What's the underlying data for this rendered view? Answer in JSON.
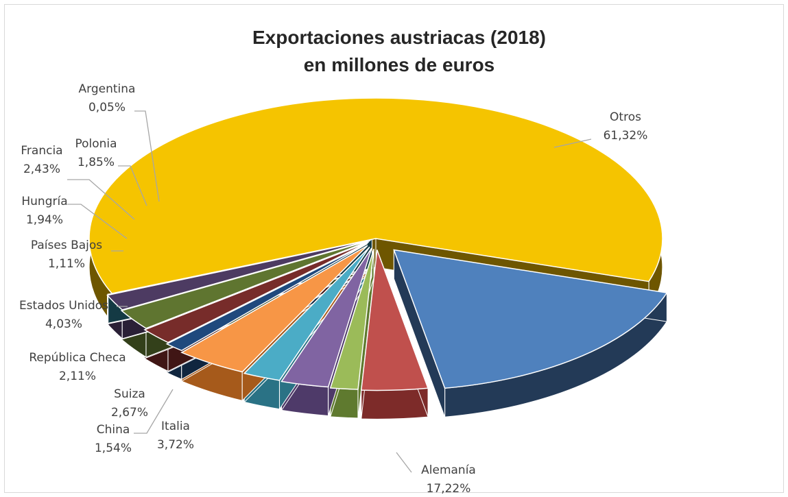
{
  "chart_data": {
    "type": "pie",
    "title": [
      "Exportaciones austriacas (2018)",
      "en millones de euros"
    ],
    "slices": [
      {
        "name": "Otros",
        "percent_label": "61,32%",
        "value": 61.32,
        "color": "#f5c400",
        "side_color": "#6e5600"
      },
      {
        "name": "Alemanía",
        "percent_label": "17,22%",
        "value": 17.22,
        "color": "#4f81bd",
        "side_color": "#233a57"
      },
      {
        "name": "Italia",
        "percent_label": "3,72%",
        "value": 3.72,
        "color": "#c0504d",
        "side_color": "#7d2b29"
      },
      {
        "name": "China",
        "percent_label": "1,54%",
        "value": 1.54,
        "color": "#9bbb59",
        "side_color": "#5f7a2f"
      },
      {
        "name": "Suiza",
        "percent_label": "2,67%",
        "value": 2.67,
        "color": "#8064a2",
        "side_color": "#4e3a69"
      },
      {
        "name": "República Checa",
        "percent_label": "2,11%",
        "value": 2.11,
        "color": "#4bacc6",
        "side_color": "#2a7285"
      },
      {
        "name": "Estados Unidos",
        "percent_label": "4,03%",
        "value": 4.03,
        "color": "#f79646",
        "side_color": "#a65a1b"
      },
      {
        "name": "Países Bajos",
        "percent_label": "1,11%",
        "value": 1.11,
        "color": "#1f497d",
        "side_color": "#10263f"
      },
      {
        "name": "Hungría",
        "percent_label": "1,94%",
        "value": 1.94,
        "color": "#772c2a",
        "side_color": "#401615"
      },
      {
        "name": "Francia",
        "percent_label": "2,43%",
        "value": 2.43,
        "color": "#5f7530",
        "side_color": "#33401a"
      },
      {
        "name": "Polonia",
        "percent_label": "1,85%",
        "value": 1.85,
        "color": "#4d3b62",
        "side_color": "#2a2036"
      },
      {
        "name": "Argentina",
        "percent_label": "0,05%",
        "value": 0.05,
        "color": "#276a7c",
        "side_color": "#143a44"
      }
    ]
  }
}
